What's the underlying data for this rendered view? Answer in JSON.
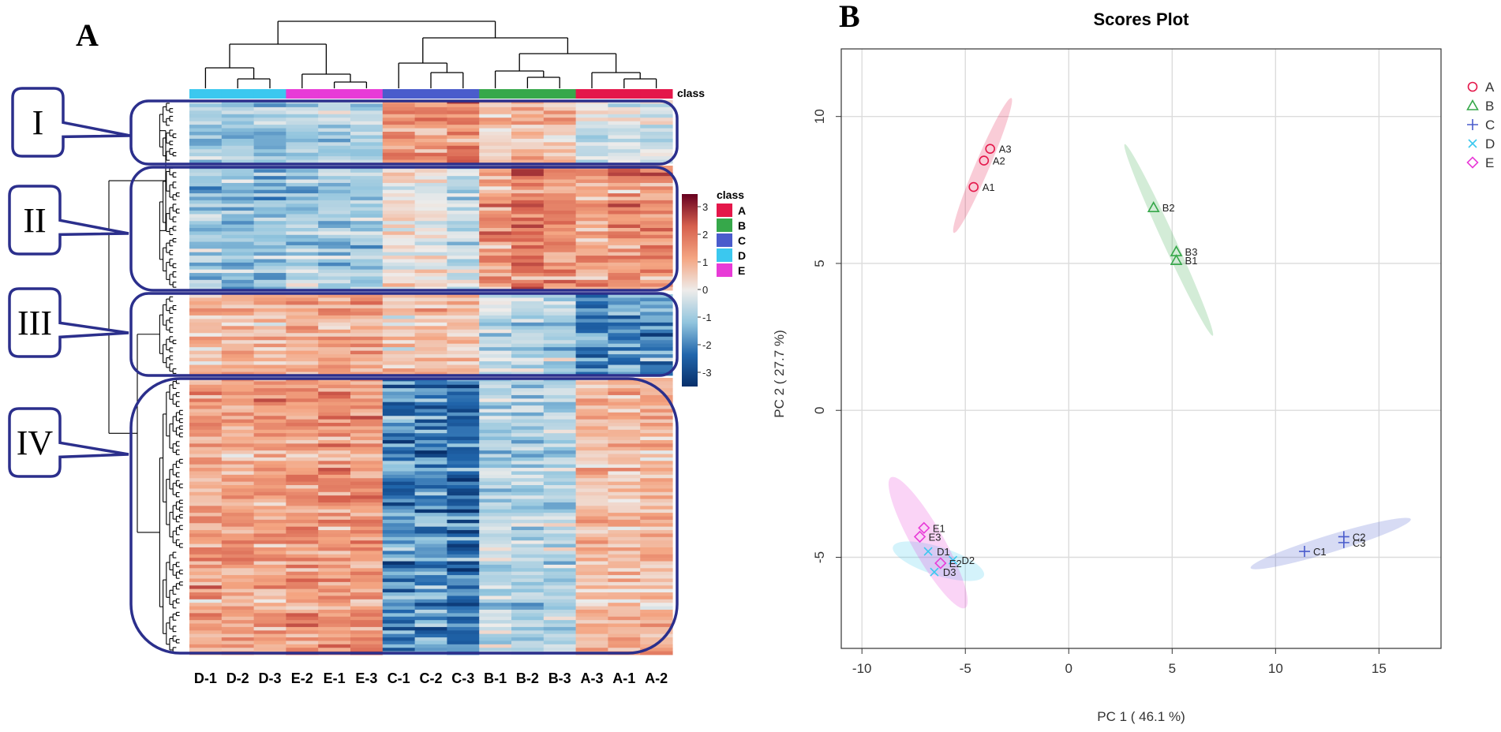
{
  "panel_a": {
    "letter": "A",
    "columns": [
      "D-1",
      "D-2",
      "D-3",
      "E-2",
      "E-1",
      "E-3",
      "C-1",
      "C-2",
      "C-3",
      "B-1",
      "B-2",
      "B-3",
      "A-3",
      "A-1",
      "A-2"
    ],
    "column_classes": [
      "D",
      "D",
      "D",
      "E",
      "E",
      "E",
      "C",
      "C",
      "C",
      "B",
      "B",
      "B",
      "A",
      "A",
      "A"
    ],
    "class_bar_label": "class",
    "legend_title": "class",
    "classes": [
      {
        "name": "A",
        "color": "#e4174a"
      },
      {
        "name": "B",
        "color": "#36a84a"
      },
      {
        "name": "C",
        "color": "#4a5ccc"
      },
      {
        "name": "D",
        "color": "#3bc8ef"
      },
      {
        "name": "E",
        "color": "#e83bd7"
      }
    ],
    "colorbar_ticks": [
      "3",
      "2",
      "1",
      "0",
      "-1",
      "-2",
      "-3"
    ],
    "clusters": [
      {
        "label": "I",
        "pattern": [
          -0.7,
          -0.9,
          -0.9,
          -0.6,
          -0.6,
          -0.6,
          1.3,
          1.3,
          1.6,
          0.6,
          0.8,
          0.7,
          -0.2,
          -0.2,
          -0.1
        ]
      },
      {
        "label": "II",
        "pattern": [
          -0.8,
          -1.0,
          -1.0,
          -0.7,
          -0.7,
          -0.8,
          0.2,
          0.1,
          -0.4,
          1.3,
          1.6,
          1.4,
          1.1,
          1.3,
          1.4
        ]
      },
      {
        "label": "III",
        "pattern": [
          0.7,
          0.8,
          0.7,
          0.9,
          0.9,
          0.9,
          0.4,
          0.6,
          0.6,
          -0.5,
          -0.6,
          -0.7,
          -1.6,
          -1.6,
          -1.5
        ]
      },
      {
        "label": "IV",
        "pattern": [
          1.0,
          1.0,
          1.0,
          1.2,
          1.2,
          1.2,
          -1.7,
          -1.6,
          -1.9,
          -0.6,
          -0.7,
          -0.6,
          0.7,
          0.7,
          0.8
        ]
      }
    ]
  },
  "panel_b": {
    "letter": "B",
    "legend": [
      "A",
      "B",
      "C",
      "D",
      "E"
    ]
  },
  "chart_data": [
    {
      "type": "heatmap",
      "title": "",
      "columns": [
        "D-1",
        "D-2",
        "D-3",
        "E-2",
        "E-1",
        "E-3",
        "C-1",
        "C-2",
        "C-3",
        "B-1",
        "B-2",
        "B-3",
        "A-3",
        "A-1",
        "A-2"
      ],
      "row_clusters": [
        "I",
        "II",
        "III",
        "IV"
      ],
      "value_range": [
        -3,
        3
      ],
      "colorbar_ticks": [
        3,
        2,
        1,
        0,
        -1,
        -2,
        -3
      ]
    },
    {
      "type": "scatter",
      "title": "Scores Plot",
      "xlabel": "PC 1 ( 46.1 %)",
      "ylabel": "PC 2 ( 27.7 %)",
      "xlim": [
        -11,
        18
      ],
      "ylim": [
        -8.1,
        12.3
      ],
      "xticks": [
        -10,
        -5,
        0,
        5,
        10,
        15
      ],
      "yticks": [
        -5,
        0,
        5,
        10
      ],
      "series": [
        {
          "name": "A",
          "color": "#e4174a",
          "marker": "circle",
          "points": [
            {
              "label": "A1",
              "x": -4.6,
              "y": 7.6
            },
            {
              "label": "A2",
              "x": -4.1,
              "y": 8.5
            },
            {
              "label": "A3",
              "x": -3.8,
              "y": 8.9
            }
          ]
        },
        {
          "name": "B",
          "color": "#36a84a",
          "marker": "triangle",
          "points": [
            {
              "label": "B2",
              "x": 4.1,
              "y": 6.9
            },
            {
              "label": "B3",
              "x": 5.2,
              "y": 5.4
            },
            {
              "label": "B1",
              "x": 5.2,
              "y": 5.1
            }
          ]
        },
        {
          "name": "C",
          "color": "#4a5ccc",
          "marker": "plus",
          "points": [
            {
              "label": "C1",
              "x": 11.4,
              "y": -4.8
            },
            {
              "label": "C2",
              "x": 13.3,
              "y": -4.3
            },
            {
              "label": "C3",
              "x": 13.3,
              "y": -4.5
            }
          ]
        },
        {
          "name": "D",
          "color": "#3bc8ef",
          "marker": "x",
          "points": [
            {
              "label": "D1",
              "x": -6.8,
              "y": -4.8
            },
            {
              "label": "D2",
              "x": -5.6,
              "y": -5.1
            },
            {
              "label": "D3",
              "x": -6.5,
              "y": -5.5
            }
          ]
        },
        {
          "name": "E",
          "color": "#e83bd7",
          "marker": "diamond",
          "points": [
            {
              "label": "E1",
              "x": -7.0,
              "y": -4.0
            },
            {
              "label": "E3",
              "x": -7.2,
              "y": -4.3
            },
            {
              "label": "E2",
              "x": -6.2,
              "y": -5.2
            }
          ]
        }
      ]
    }
  ]
}
